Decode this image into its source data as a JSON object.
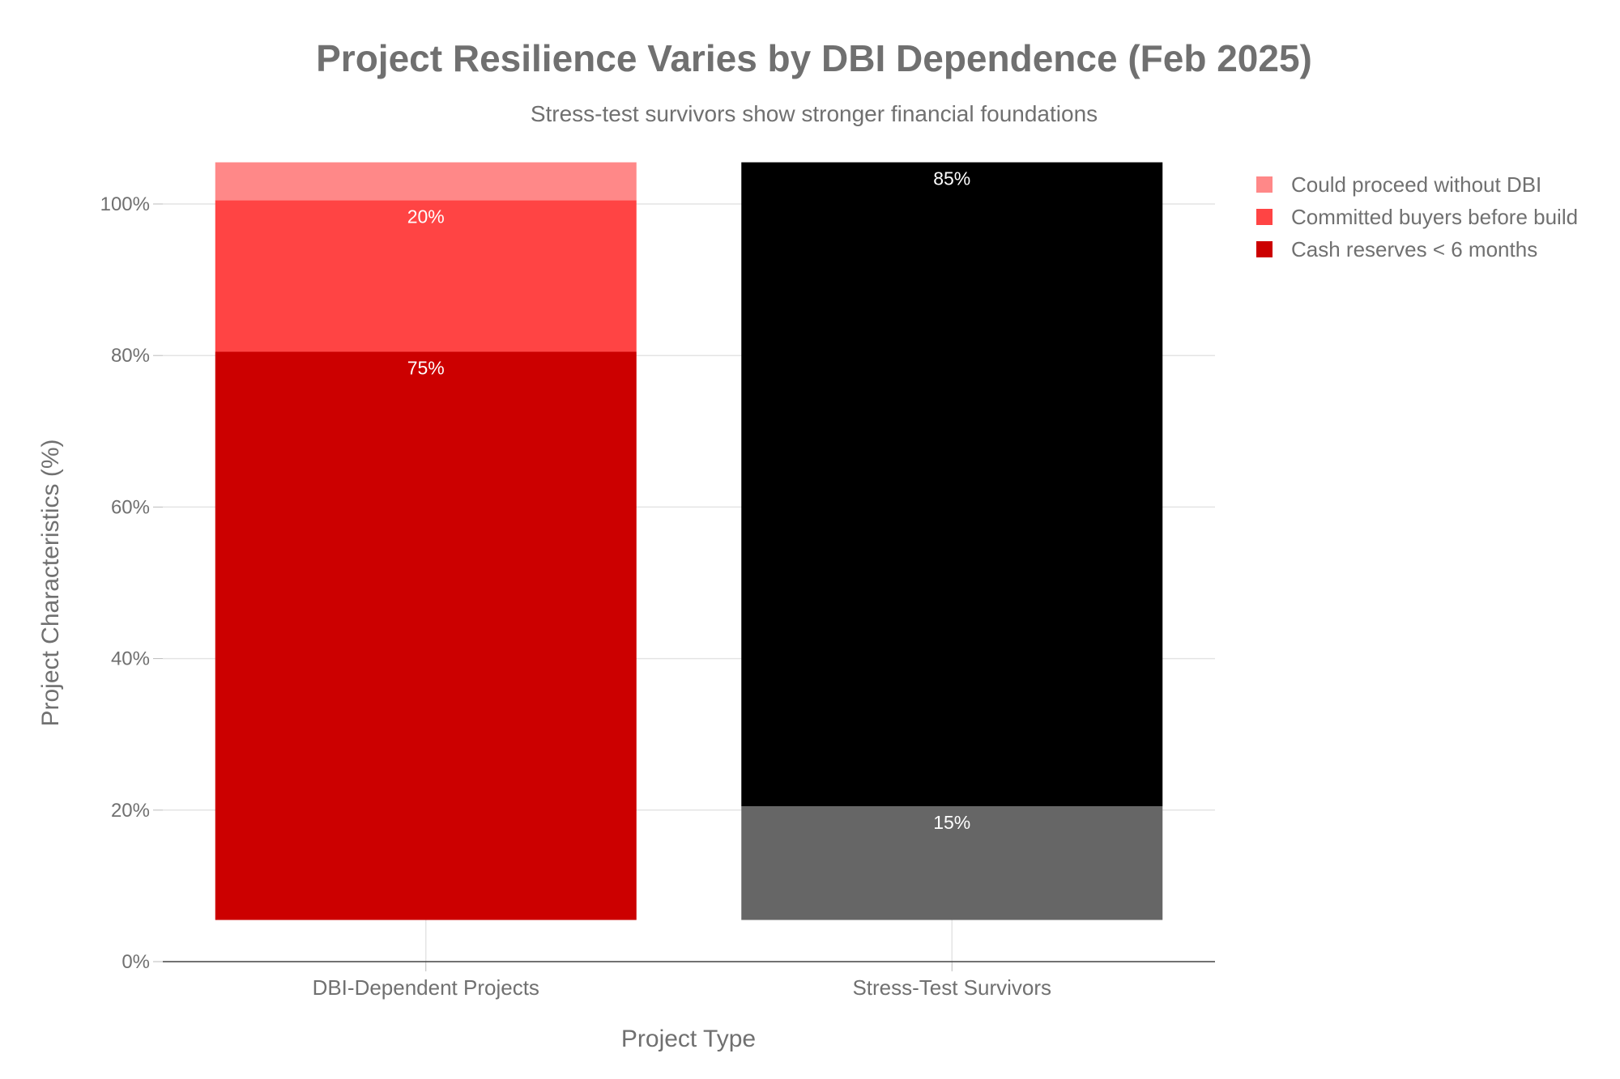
{
  "chart_data": {
    "type": "bar",
    "stacked": true,
    "title": "Project Resilience Varies by DBI Dependence (Feb 2025)",
    "subtitle": "Stress-test survivors show stronger financial foundations",
    "xlabel": "Project Type",
    "ylabel": "Project Characteristics (%)",
    "ylim": [
      0,
      105.5
    ],
    "base_offset": 5.5,
    "yticks": [
      0,
      20,
      40,
      60,
      80,
      100
    ],
    "ytick_labels": [
      "0%",
      "20%",
      "40%",
      "60%",
      "80%",
      "100%"
    ],
    "grid": true,
    "legend_position": "top-right",
    "categories": [
      "DBI-Dependent Projects",
      "Stress-Test Survivors"
    ],
    "series": [
      {
        "name": "Cash reserves < 6 months",
        "values": [
          75,
          15
        ],
        "colors": [
          "#cc0000",
          "#666666"
        ],
        "labels": [
          "75%",
          "15%"
        ]
      },
      {
        "name": "Committed buyers before build",
        "values": [
          20,
          85
        ],
        "colors": [
          "#ff4444",
          "#000000"
        ],
        "labels": [
          "20%",
          "85%"
        ]
      },
      {
        "name": "Could proceed without DBI",
        "values": [
          5,
          0
        ],
        "colors": [
          "#ff8888",
          "#000000"
        ],
        "labels": [
          "",
          ""
        ]
      }
    ],
    "legend": [
      {
        "name": "Could proceed without DBI",
        "color": "#ff8888"
      },
      {
        "name": "Committed buyers before build",
        "color": "#ff4444"
      },
      {
        "name": "Cash reserves < 6 months",
        "color": "#cc0000"
      }
    ]
  }
}
